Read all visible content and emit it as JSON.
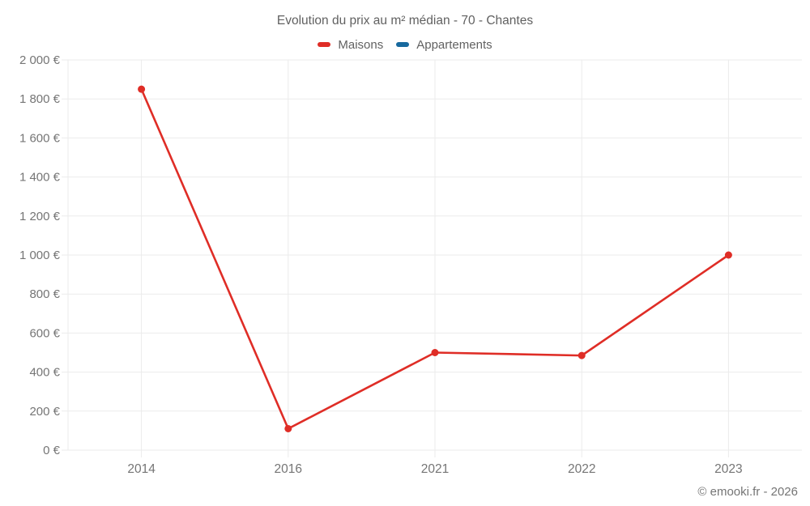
{
  "chart_data": {
    "type": "line",
    "title": "Evolution du prix au m² médian - 70 - Chantes",
    "categories": [
      "2014",
      "2016",
      "2021",
      "2022",
      "2023"
    ],
    "series": [
      {
        "name": "Maisons",
        "color": "#df2d26",
        "values": [
          1850,
          110,
          500,
          485,
          1000
        ]
      },
      {
        "name": "Appartements",
        "color": "#17699e",
        "values": []
      }
    ],
    "ylim": [
      0,
      2000
    ],
    "y_ticks": [
      0,
      200,
      400,
      600,
      800,
      1000,
      1200,
      1400,
      1600,
      1800,
      2000
    ],
    "y_tick_labels": [
      "0 €",
      "200 €",
      "400 €",
      "600 €",
      "800 €",
      "1 000 €",
      "1 200 €",
      "1 400 €",
      "1 600 €",
      "1 800 €",
      "2 000 €"
    ],
    "xlabel": "",
    "ylabel": "",
    "grid": true,
    "legend_position": "top",
    "colors": {
      "grid": "#ebebeb",
      "tick_label": "#757575",
      "title_text": "#616161"
    }
  },
  "footer": {
    "copyright": "© emooki.fr - 2026"
  }
}
